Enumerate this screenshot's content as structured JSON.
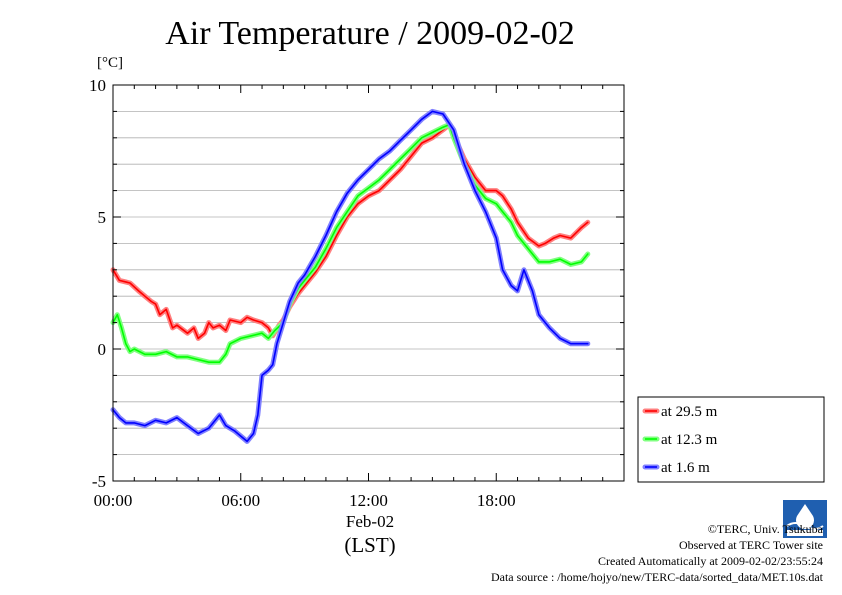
{
  "title": "Air Temperature / 2009-02-02",
  "unit": "[°C]",
  "x_date_label": "Feb-02",
  "x_axis_label": "(LST)",
  "footer": {
    "copyright": "©TERC, Univ. Tsukuba",
    "observed": "Observed at TERC Tower site",
    "created": "Created Automatically at 2009-02-02/23:55:24",
    "source": "Data source : /home/hojyo/new/TERC-data/sorted_data/MET.10s.dat"
  },
  "logo_icon": "terc-logo-icon",
  "chart_data": {
    "type": "line",
    "title": "Air Temperature / 2009-02-02",
    "ylabel": "[°C]",
    "xlabel": "(LST)",
    "ylim": [
      -5,
      10
    ],
    "xlim": [
      0,
      24
    ],
    "y_ticks": [
      {
        "value": 10,
        "label": "10"
      },
      {
        "value": 5,
        "label": "5"
      },
      {
        "value": 0,
        "label": "0"
      },
      {
        "value": -5,
        "label": "-5"
      }
    ],
    "x_ticks": [
      {
        "value": 0,
        "label": "00:00"
      },
      {
        "value": 6,
        "label": "06:00"
      },
      {
        "value": 12,
        "label": "12:00"
      },
      {
        "value": 18,
        "label": "18:00"
      }
    ],
    "grid": true,
    "legend_position": "right-bottom",
    "series": [
      {
        "name": "at 29.5 m",
        "color": "#ff0000",
        "band_color": "#ff8080",
        "points": [
          [
            0,
            3.0
          ],
          [
            0.3,
            2.6
          ],
          [
            0.8,
            2.5
          ],
          [
            1.2,
            2.2
          ],
          [
            1.5,
            2.0
          ],
          [
            1.8,
            1.8
          ],
          [
            2.0,
            1.7
          ],
          [
            2.2,
            1.3
          ],
          [
            2.5,
            1.5
          ],
          [
            2.8,
            0.8
          ],
          [
            3.0,
            0.9
          ],
          [
            3.5,
            0.6
          ],
          [
            3.8,
            0.8
          ],
          [
            4.0,
            0.4
          ],
          [
            4.3,
            0.6
          ],
          [
            4.5,
            1.0
          ],
          [
            4.7,
            0.8
          ],
          [
            5.0,
            0.9
          ],
          [
            5.3,
            0.7
          ],
          [
            5.5,
            1.1
          ],
          [
            6.0,
            1.0
          ],
          [
            6.3,
            1.2
          ],
          [
            6.6,
            1.1
          ],
          [
            7.0,
            1.0
          ],
          [
            7.3,
            0.8
          ],
          [
            7.5,
            0.5
          ],
          [
            7.8,
            0.9
          ],
          [
            8.0,
            1.1
          ],
          [
            8.3,
            1.6
          ],
          [
            8.7,
            2.1
          ],
          [
            9.0,
            2.4
          ],
          [
            9.5,
            2.9
          ],
          [
            10.0,
            3.5
          ],
          [
            10.5,
            4.3
          ],
          [
            11.0,
            5.0
          ],
          [
            11.5,
            5.5
          ],
          [
            12.0,
            5.8
          ],
          [
            12.5,
            6.0
          ],
          [
            13.0,
            6.4
          ],
          [
            13.5,
            6.8
          ],
          [
            14.0,
            7.3
          ],
          [
            14.5,
            7.8
          ],
          [
            15.0,
            8.0
          ],
          [
            15.5,
            8.3
          ],
          [
            15.8,
            8.5
          ],
          [
            16.0,
            8.1
          ],
          [
            16.5,
            7.2
          ],
          [
            17.0,
            6.5
          ],
          [
            17.5,
            6.0
          ],
          [
            18.0,
            6.0
          ],
          [
            18.3,
            5.8
          ],
          [
            18.7,
            5.3
          ],
          [
            19.0,
            4.8
          ],
          [
            19.5,
            4.2
          ],
          [
            20.0,
            3.9
          ],
          [
            20.3,
            4.0
          ],
          [
            20.7,
            4.2
          ],
          [
            21.0,
            4.3
          ],
          [
            21.5,
            4.2
          ],
          [
            22.0,
            4.6
          ],
          [
            22.3,
            4.8
          ]
        ]
      },
      {
        "name": "at 12.3 m",
        "color": "#00ff00",
        "band_color": "#80ff80",
        "points": [
          [
            0,
            1.0
          ],
          [
            0.2,
            1.3
          ],
          [
            0.4,
            0.8
          ],
          [
            0.6,
            0.2
          ],
          [
            0.8,
            -0.1
          ],
          [
            1.0,
            0.0
          ],
          [
            1.5,
            -0.2
          ],
          [
            2.0,
            -0.2
          ],
          [
            2.5,
            -0.1
          ],
          [
            3.0,
            -0.3
          ],
          [
            3.5,
            -0.3
          ],
          [
            4.0,
            -0.4
          ],
          [
            4.5,
            -0.5
          ],
          [
            5.0,
            -0.5
          ],
          [
            5.3,
            -0.2
          ],
          [
            5.5,
            0.2
          ],
          [
            6.0,
            0.4
          ],
          [
            6.5,
            0.5
          ],
          [
            7.0,
            0.6
          ],
          [
            7.3,
            0.4
          ],
          [
            7.6,
            0.7
          ],
          [
            8.0,
            1.0
          ],
          [
            8.3,
            1.7
          ],
          [
            8.7,
            2.3
          ],
          [
            9.0,
            2.6
          ],
          [
            9.5,
            3.1
          ],
          [
            10.0,
            3.8
          ],
          [
            10.5,
            4.6
          ],
          [
            11.0,
            5.2
          ],
          [
            11.5,
            5.8
          ],
          [
            12.0,
            6.1
          ],
          [
            12.5,
            6.4
          ],
          [
            13.0,
            6.8
          ],
          [
            13.5,
            7.2
          ],
          [
            14.0,
            7.6
          ],
          [
            14.5,
            8.0
          ],
          [
            15.0,
            8.2
          ],
          [
            15.5,
            8.4
          ],
          [
            15.8,
            8.5
          ],
          [
            16.0,
            8.0
          ],
          [
            16.5,
            7.0
          ],
          [
            17.0,
            6.2
          ],
          [
            17.5,
            5.7
          ],
          [
            18.0,
            5.5
          ],
          [
            18.3,
            5.2
          ],
          [
            18.7,
            4.8
          ],
          [
            19.0,
            4.3
          ],
          [
            19.5,
            3.8
          ],
          [
            20.0,
            3.3
          ],
          [
            20.5,
            3.3
          ],
          [
            21.0,
            3.4
          ],
          [
            21.5,
            3.2
          ],
          [
            22.0,
            3.3
          ],
          [
            22.3,
            3.6
          ]
        ]
      },
      {
        "name": "at 1.6 m",
        "color": "#0000ff",
        "band_color": "#8080ff",
        "points": [
          [
            0,
            -2.3
          ],
          [
            0.3,
            -2.6
          ],
          [
            0.6,
            -2.8
          ],
          [
            1.0,
            -2.8
          ],
          [
            1.5,
            -2.9
          ],
          [
            2.0,
            -2.7
          ],
          [
            2.5,
            -2.8
          ],
          [
            3.0,
            -2.6
          ],
          [
            3.5,
            -2.9
          ],
          [
            4.0,
            -3.2
          ],
          [
            4.5,
            -3.0
          ],
          [
            5.0,
            -2.5
          ],
          [
            5.3,
            -2.9
          ],
          [
            5.7,
            -3.1
          ],
          [
            6.0,
            -3.3
          ],
          [
            6.3,
            -3.5
          ],
          [
            6.6,
            -3.2
          ],
          [
            6.8,
            -2.5
          ],
          [
            7.0,
            -1.0
          ],
          [
            7.3,
            -0.8
          ],
          [
            7.5,
            -0.6
          ],
          [
            7.7,
            0.2
          ],
          [
            8.0,
            1.0
          ],
          [
            8.3,
            1.8
          ],
          [
            8.7,
            2.5
          ],
          [
            9.0,
            2.8
          ],
          [
            9.5,
            3.5
          ],
          [
            10.0,
            4.3
          ],
          [
            10.5,
            5.2
          ],
          [
            11.0,
            5.9
          ],
          [
            11.5,
            6.4
          ],
          [
            12.0,
            6.8
          ],
          [
            12.5,
            7.2
          ],
          [
            13.0,
            7.5
          ],
          [
            13.5,
            7.9
          ],
          [
            14.0,
            8.3
          ],
          [
            14.5,
            8.7
          ],
          [
            15.0,
            9.0
          ],
          [
            15.5,
            8.9
          ],
          [
            16.0,
            8.3
          ],
          [
            16.5,
            7.0
          ],
          [
            17.0,
            6.0
          ],
          [
            17.5,
            5.2
          ],
          [
            18.0,
            4.2
          ],
          [
            18.3,
            3.0
          ],
          [
            18.7,
            2.4
          ],
          [
            19.0,
            2.2
          ],
          [
            19.3,
            3.0
          ],
          [
            19.7,
            2.2
          ],
          [
            20.0,
            1.3
          ],
          [
            20.5,
            0.8
          ],
          [
            21.0,
            0.4
          ],
          [
            21.5,
            0.2
          ],
          [
            22.0,
            0.2
          ],
          [
            22.3,
            0.2
          ]
        ]
      }
    ]
  }
}
